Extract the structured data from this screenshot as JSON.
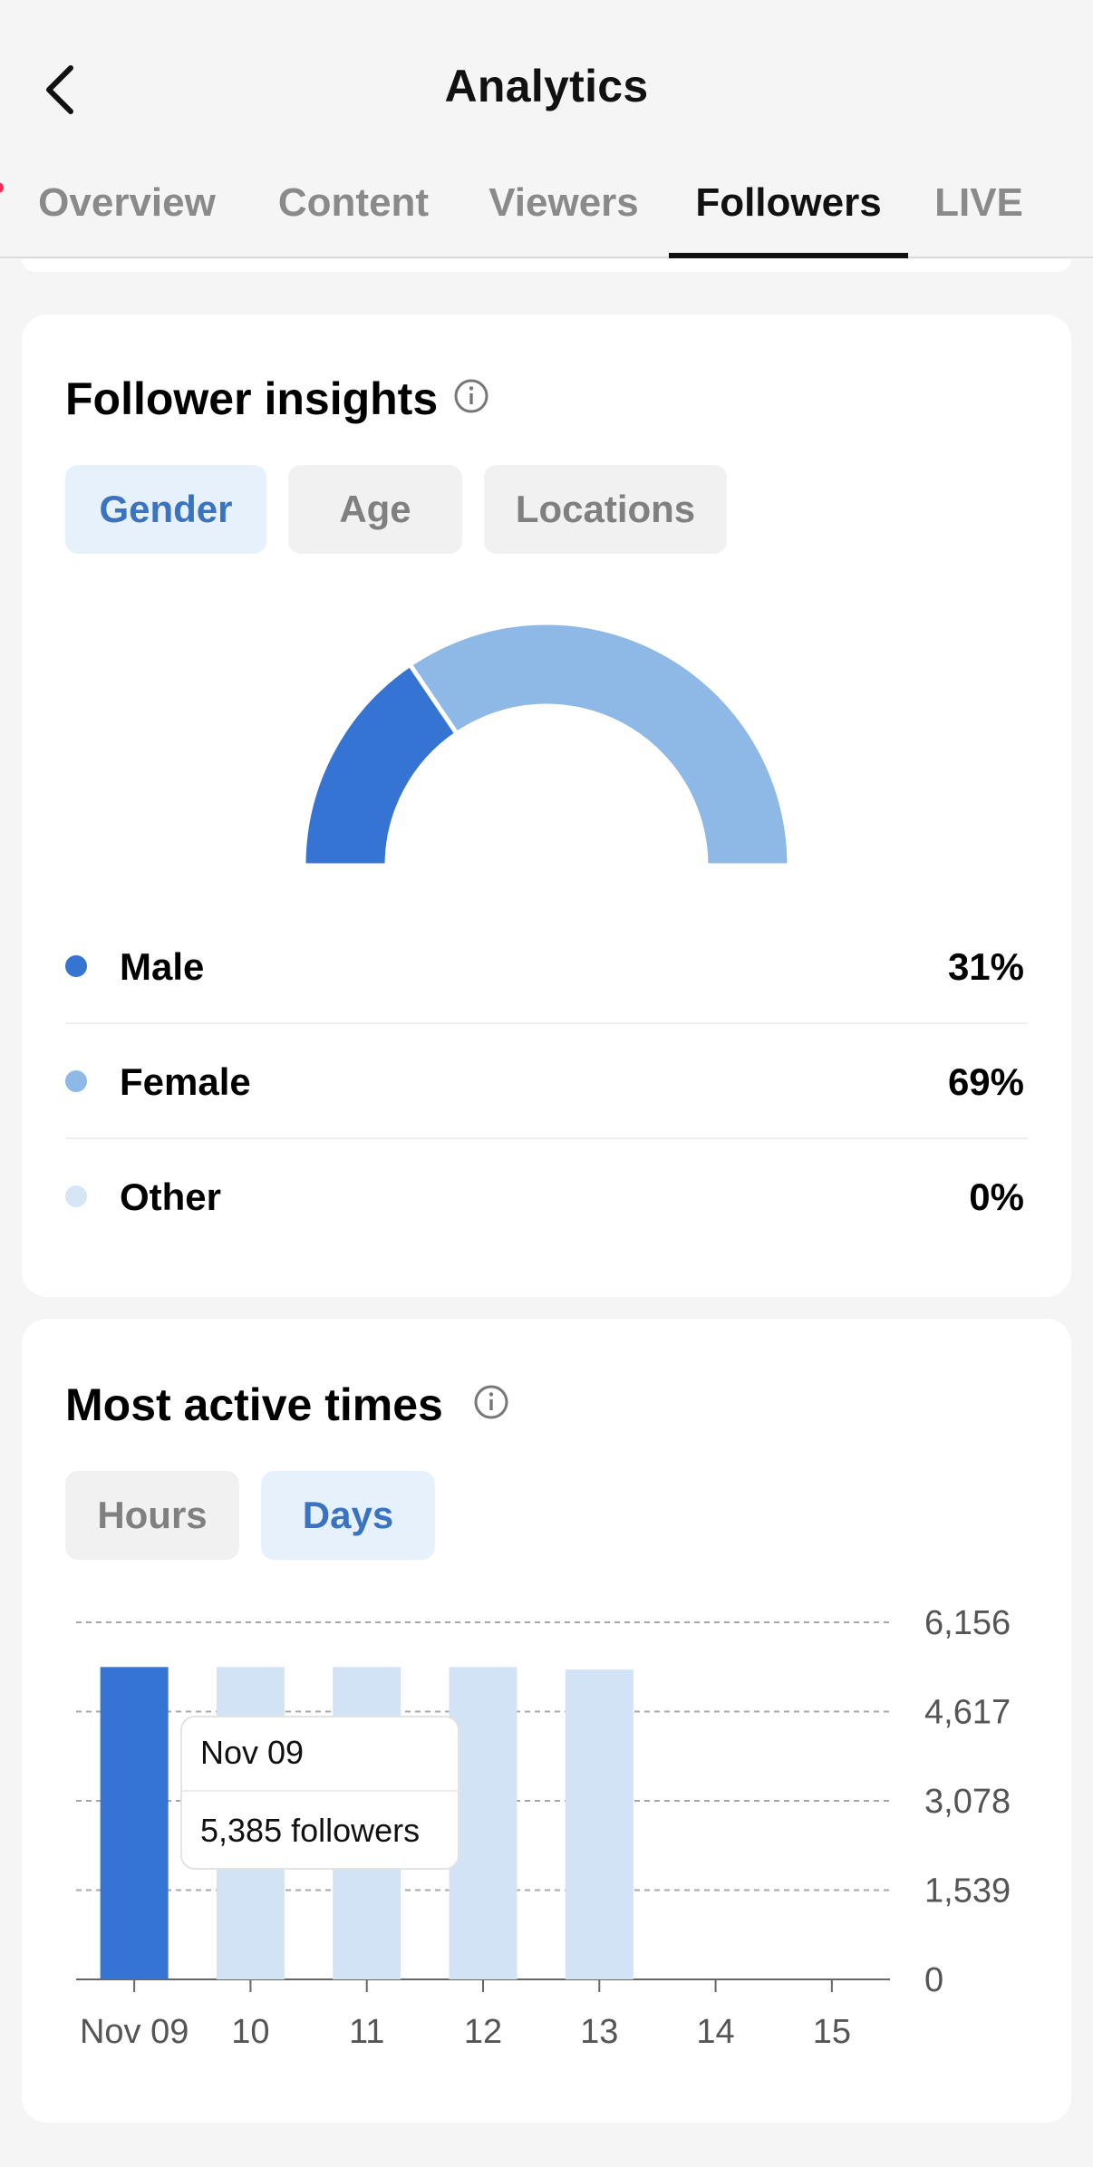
{
  "header": {
    "title": "Analytics",
    "back_icon": "chevron-left-icon"
  },
  "tabs": [
    {
      "label": "Overview",
      "active": false
    },
    {
      "label": "Content",
      "active": false
    },
    {
      "label": "Viewers",
      "active": false
    },
    {
      "label": "Followers",
      "active": true
    },
    {
      "label": "LIVE",
      "active": false
    }
  ],
  "follower_insights": {
    "title": "Follower insights",
    "filters": [
      {
        "label": "Gender",
        "selected": true
      },
      {
        "label": "Age",
        "selected": false
      },
      {
        "label": "Locations",
        "selected": false
      }
    ],
    "legend": [
      {
        "label": "Male",
        "value": "31%",
        "color": "#3574d3"
      },
      {
        "label": "Female",
        "value": "69%",
        "color": "#8eb8e6"
      },
      {
        "label": "Other",
        "value": "0%",
        "color": "#d6e6f7"
      }
    ]
  },
  "most_active": {
    "title": "Most active times",
    "filters": [
      {
        "label": "Hours",
        "selected": false
      },
      {
        "label": "Days",
        "selected": true
      }
    ],
    "tooltip": {
      "date": "Nov 09",
      "value": "5,385 followers"
    }
  },
  "chart_data": [
    {
      "type": "pie",
      "labels": [
        "Male",
        "Female",
        "Other"
      ],
      "values": [
        31,
        69,
        0
      ],
      "colors": [
        "#3574d3",
        "#8eb8e6",
        "#d6e6f7"
      ],
      "variant": "half-donut"
    },
    {
      "type": "bar",
      "categories": [
        "Nov 09",
        "10",
        "11",
        "12",
        "13",
        "14",
        "15"
      ],
      "values": [
        5385,
        5385,
        5385,
        5385,
        5340,
        null,
        null
      ],
      "highlighted_index": 0,
      "highlight_color": "#3574d3",
      "bar_color": "#d1e3f5",
      "y_ticks": [
        "0",
        "1,539",
        "3,078",
        "4,617",
        "6,156"
      ],
      "y_tick_values": [
        0,
        1539,
        3078,
        4617,
        6156
      ],
      "ylim": [
        0,
        6156
      ],
      "y_axis_side": "right",
      "grid": true
    }
  ]
}
